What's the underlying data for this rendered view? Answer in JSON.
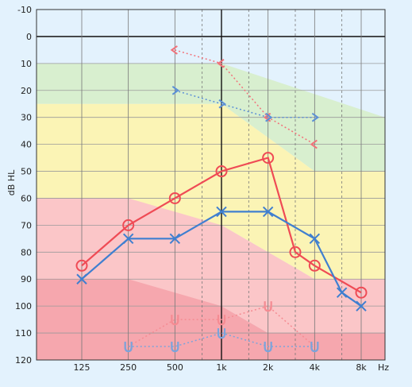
{
  "chart_data": {
    "type": "line",
    "ylabel": "dB HL",
    "x_unit": "Hz",
    "y_range": [
      -10,
      120
    ],
    "y_ticks": [
      -10,
      0,
      10,
      20,
      30,
      40,
      50,
      60,
      70,
      80,
      90,
      100,
      110,
      120
    ],
    "x_ticks": [
      {
        "hz": 125,
        "label": "125"
      },
      {
        "hz": 250,
        "label": "250"
      },
      {
        "hz": 500,
        "label": "500"
      },
      {
        "hz": 1000,
        "label": "1k"
      },
      {
        "hz": 2000,
        "label": "2k"
      },
      {
        "hz": 4000,
        "label": "4k"
      },
      {
        "hz": 8000,
        "label": "8k"
      }
    ],
    "x_minor_hz": [
      750,
      1500,
      3000,
      6000
    ],
    "x_scale": "log",
    "bands": [
      {
        "color": "#d8efcf",
        "points": [
          [
            125,
            10
          ],
          [
            1000,
            10
          ],
          [
            8000,
            30
          ],
          [
            8000,
            50
          ],
          [
            4000,
            50
          ],
          [
            1000,
            25
          ],
          [
            125,
            25
          ]
        ]
      },
      {
        "color": "#fbf4b5",
        "points": [
          [
            125,
            25
          ],
          [
            1000,
            25
          ],
          [
            4000,
            50
          ],
          [
            8000,
            50
          ],
          [
            8000,
            90
          ],
          [
            4000,
            90
          ],
          [
            1000,
            70
          ],
          [
            125,
            60
          ]
        ]
      },
      {
        "color": "#fbc6c8",
        "points": [
          [
            125,
            60
          ],
          [
            250,
            60
          ],
          [
            1000,
            70
          ],
          [
            4000,
            90
          ],
          [
            8000,
            90
          ],
          [
            8000,
            110
          ],
          [
            2000,
            110
          ],
          [
            1000,
            100
          ],
          [
            125,
            90
          ]
        ]
      },
      {
        "color": "#f6a7ae",
        "points": [
          [
            125,
            90
          ],
          [
            250,
            90
          ],
          [
            1000,
            100
          ],
          [
            2000,
            110
          ],
          [
            8000,
            110
          ],
          [
            8000,
            120
          ],
          [
            125,
            120
          ]
        ]
      }
    ],
    "series": [
      {
        "color": "#ef4b55",
        "style": "solid",
        "marker": "circle",
        "points": [
          [
            125,
            85
          ],
          [
            250,
            70
          ],
          [
            500,
            60
          ],
          [
            1000,
            50
          ],
          [
            2000,
            45
          ],
          [
            3000,
            80
          ],
          [
            4000,
            85
          ],
          [
            8000,
            95
          ]
        ]
      },
      {
        "color": "#3f7fd0",
        "style": "solid",
        "marker": "x",
        "points": [
          [
            125,
            90
          ],
          [
            250,
            75
          ],
          [
            500,
            75
          ],
          [
            1000,
            65
          ],
          [
            2000,
            65
          ],
          [
            4000,
            75
          ],
          [
            6000,
            95
          ],
          [
            8000,
            100
          ]
        ]
      },
      {
        "color": "#f2727a",
        "style": "dotted",
        "marker": "lt",
        "points": [
          [
            500,
            5
          ],
          [
            1000,
            10
          ],
          [
            2000,
            30
          ],
          [
            4000,
            40
          ]
        ]
      },
      {
        "color": "#5b8fd6",
        "style": "dotted",
        "marker": "gt",
        "points": [
          [
            500,
            20
          ],
          [
            1000,
            25
          ],
          [
            2000,
            30
          ],
          [
            4000,
            30
          ]
        ]
      },
      {
        "color": "#f58b92",
        "style": "dotted",
        "marker": "U",
        "points": [
          [
            250,
            115
          ],
          [
            500,
            105
          ],
          [
            1000,
            105
          ],
          [
            2000,
            100
          ],
          [
            4000,
            115
          ]
        ]
      },
      {
        "color": "#7aa4dc",
        "style": "dotted",
        "marker": "U",
        "points": [
          [
            250,
            115
          ],
          [
            500,
            115
          ],
          [
            1000,
            110
          ],
          [
            2000,
            115
          ],
          [
            4000,
            115
          ]
        ]
      }
    ]
  }
}
